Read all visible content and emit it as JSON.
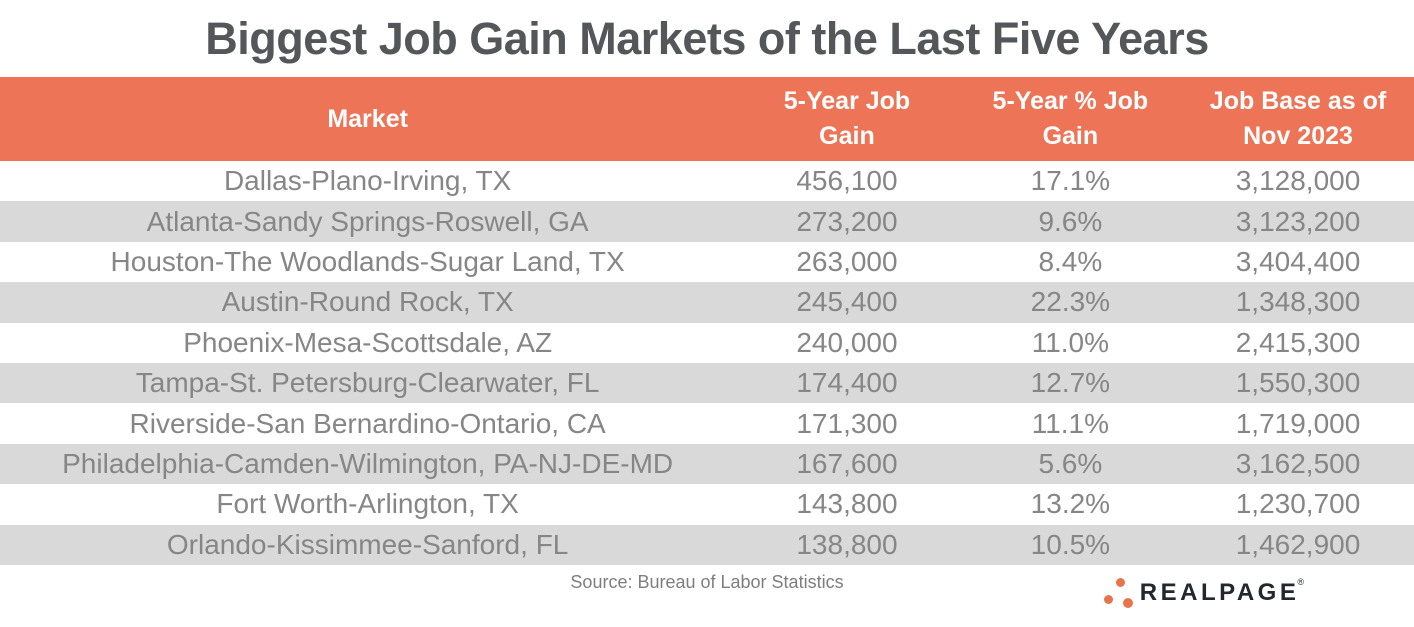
{
  "title": "Biggest Job Gain Markets of the Last Five Years",
  "colors": {
    "header_bg": "#ED7456",
    "row_alt_bg": "#D9D9D9",
    "title_text": "#55565A",
    "row_text": "#868686",
    "header_text": "#FFFFFF",
    "logo_text": "#23272E",
    "logo_dot_orange": "#E8744E"
  },
  "table": {
    "columns": [
      {
        "lines": [
          "Market"
        ]
      },
      {
        "lines": [
          "5-Year Job",
          "Gain"
        ]
      },
      {
        "lines": [
          "5-Year % Job",
          "Gain"
        ]
      },
      {
        "lines": [
          "Job Base as of",
          "Nov 2023"
        ]
      }
    ],
    "rows": [
      {
        "market": "Dallas-Plano-Irving, TX",
        "gain": "456,100",
        "pct": "17.1%",
        "base": "3,128,000"
      },
      {
        "market": "Atlanta-Sandy Springs-Roswell, GA",
        "gain": "273,200",
        "pct": "9.6%",
        "base": "3,123,200"
      },
      {
        "market": "Houston-The Woodlands-Sugar Land, TX",
        "gain": "263,000",
        "pct": "8.4%",
        "base": "3,404,400"
      },
      {
        "market": "Austin-Round Rock, TX",
        "gain": "245,400",
        "pct": "22.3%",
        "base": "1,348,300"
      },
      {
        "market": "Phoenix-Mesa-Scottsdale, AZ",
        "gain": "240,000",
        "pct": "11.0%",
        "base": "2,415,300"
      },
      {
        "market": "Tampa-St. Petersburg-Clearwater, FL",
        "gain": "174,400",
        "pct": "12.7%",
        "base": "1,550,300"
      },
      {
        "market": "Riverside-San Bernardino-Ontario, CA",
        "gain": "171,300",
        "pct": "11.1%",
        "base": "1,719,000"
      },
      {
        "market": "Philadelphia-Camden-Wilmington, PA-NJ-DE-MD",
        "gain": "167,600",
        "pct": "5.6%",
        "base": "3,162,500"
      },
      {
        "market": "Fort Worth-Arlington, TX",
        "gain": "143,800",
        "pct": "13.2%",
        "base": "1,230,700"
      },
      {
        "market": "Orlando-Kissimmee-Sanford, FL",
        "gain": "138,800",
        "pct": "10.5%",
        "base": "1,462,900"
      }
    ]
  },
  "source": "Source: Bureau of Labor Statistics",
  "logo": {
    "brand": "REALPAGE",
    "mark": "®"
  },
  "chart_data": {
    "type": "table",
    "title": "Biggest Job Gain Markets of the Last Five Years",
    "columns": [
      "Market",
      "5-Year Job Gain",
      "5-Year % Job Gain",
      "Job Base as of Nov 2023"
    ],
    "rows": [
      [
        "Dallas-Plano-Irving, TX",
        456100,
        17.1,
        3128000
      ],
      [
        "Atlanta-Sandy Springs-Roswell, GA",
        273200,
        9.6,
        3123200
      ],
      [
        "Houston-The Woodlands-Sugar Land, TX",
        263000,
        8.4,
        3404400
      ],
      [
        "Austin-Round Rock, TX",
        245400,
        22.3,
        1348300
      ],
      [
        "Phoenix-Mesa-Scottsdale, AZ",
        240000,
        11.0,
        2415300
      ],
      [
        "Tampa-St. Petersburg-Clearwater, FL",
        174400,
        12.7,
        1550300
      ],
      [
        "Riverside-San Bernardino-Ontario, CA",
        171300,
        11.1,
        1719000
      ],
      [
        "Philadelphia-Camden-Wilmington, PA-NJ-DE-MD",
        167600,
        5.6,
        3162500
      ],
      [
        "Fort Worth-Arlington, TX",
        143800,
        13.2,
        1230700
      ],
      [
        "Orlando-Kissimmee-Sanford, FL",
        138800,
        10.5,
        1462900
      ]
    ],
    "units": {
      "5-Year Job Gain": "jobs",
      "5-Year % Job Gain": "percent",
      "Job Base as of Nov 2023": "jobs"
    },
    "source_note": "Source: Bureau of Labor Statistics"
  }
}
